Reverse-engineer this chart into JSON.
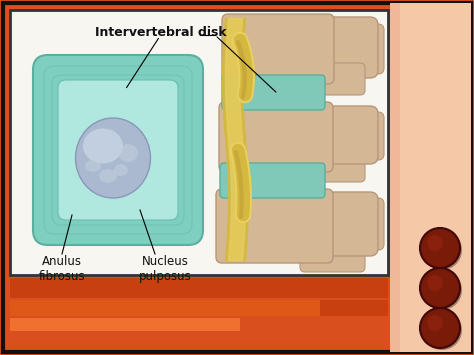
{
  "bg_outer": "#d94f1e",
  "bg_right_panel": "#f0c0a0",
  "screen_bg": "#f8f6f0",
  "border_color": "#222222",
  "teal_outer": "#7ecfc0",
  "teal_mid": "#8ed8ca",
  "teal_inner": "#a0e0d5",
  "nucleus_color": "#aab8d0",
  "nucleus_hi": "#c8d5e5",
  "spine_bone": "#d4b896",
  "spine_bone_edge": "#b8957a",
  "spine_disk_teal": "#80c8b8",
  "nerve_yellow": "#d4b840",
  "nerve_light": "#e8d060",
  "bottom_bar_dark": "#c84010",
  "bottom_bar_mid": "#e05818",
  "bottom_bar_light": "#f07030",
  "circle_dark": "#7a1a08",
  "circle_mid": "#9a2810",
  "text_color": "#111111",
  "label_font": 8.5,
  "title_label": "Intervertebral disk",
  "label_anulus": "Anulus\nfibrosus",
  "label_nucleus": "Nucleus\npulposus"
}
